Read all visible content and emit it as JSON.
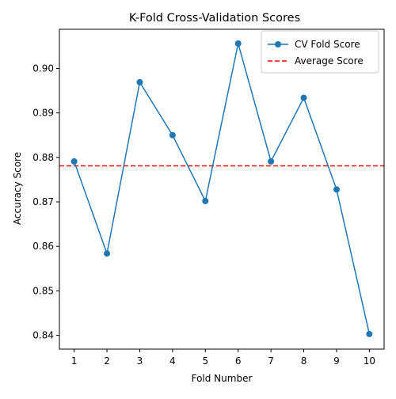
{
  "chart_data": {
    "type": "line",
    "title": "K-Fold Cross-Validation Scores",
    "xlabel": "Fold Number",
    "ylabel": "Accuracy Score",
    "x": [
      1,
      2,
      3,
      4,
      5,
      6,
      7,
      8,
      9,
      10
    ],
    "x_ticks": [
      "1",
      "2",
      "3",
      "4",
      "5",
      "6",
      "7",
      "8",
      "9",
      "10"
    ],
    "y_ticks": [
      "0.84",
      "0.85",
      "0.86",
      "0.87",
      "0.88",
      "0.89",
      "0.90"
    ],
    "xlim": [
      0.55,
      10.45
    ],
    "ylim": [
      0.8369,
      0.9088
    ],
    "grid": false,
    "legend_position": "upper right",
    "series": [
      {
        "name": "CV Fold Score",
        "color": "#1f77b4",
        "style": "solid line with circle markers",
        "values": [
          0.8791,
          0.8584,
          0.8969,
          0.885,
          0.8702,
          0.9056,
          0.8791,
          0.8934,
          0.8728,
          0.8403
        ]
      }
    ],
    "reference_lines": [
      {
        "name": "Average Score",
        "color": "#ff0000",
        "style": "dashed",
        "value": 0.8781
      }
    ]
  }
}
